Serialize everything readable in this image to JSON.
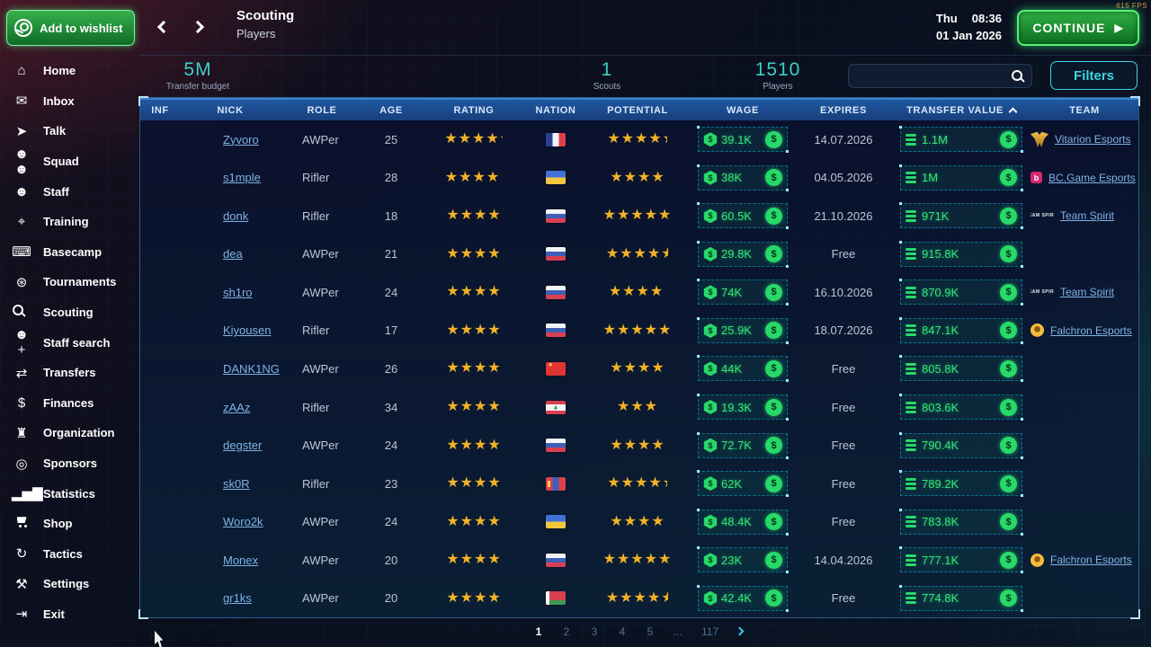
{
  "fps": "615 FPS",
  "topbar": {
    "wishlist_label": "Add to wishlist",
    "title": "Scouting",
    "subtitle": "Players",
    "date_day": "Thu",
    "time": "08:36",
    "date": "01 Jan 2026",
    "continue_label": "CONTINUE"
  },
  "statsbar": {
    "budget_value": "5M",
    "budget_label": "Transfer budget",
    "scouts_value": "1",
    "scouts_label": "Scouts",
    "players_value": "1510",
    "players_label": "Players",
    "search_placeholder": "",
    "filters_label": "Filters"
  },
  "sidebar": {
    "items": [
      {
        "label": "Home",
        "icon": "home-icon"
      },
      {
        "label": "Inbox",
        "icon": "inbox-icon"
      },
      {
        "label": "Talk",
        "icon": "talk-icon"
      },
      {
        "label": "Squad",
        "icon": "squad-icon"
      },
      {
        "label": "Staff",
        "icon": "staff-icon"
      },
      {
        "label": "Training",
        "icon": "training-icon"
      },
      {
        "label": "Basecamp",
        "icon": "basecamp-icon"
      },
      {
        "label": "Tournaments",
        "icon": "tournaments-icon"
      },
      {
        "label": "Scouting",
        "icon": "scouting-icon"
      },
      {
        "label": "Staff search",
        "icon": "staff-search-icon"
      },
      {
        "label": "Transfers",
        "icon": "transfers-icon"
      },
      {
        "label": "Finances",
        "icon": "finances-icon"
      },
      {
        "label": "Organization",
        "icon": "organization-icon"
      },
      {
        "label": "Sponsors",
        "icon": "sponsors-icon"
      },
      {
        "label": "Statistics",
        "icon": "statistics-icon"
      },
      {
        "label": "Shop",
        "icon": "shop-icon"
      },
      {
        "label": "Tactics",
        "icon": "tactics-icon"
      },
      {
        "label": "Settings",
        "icon": "settings-icon"
      },
      {
        "label": "Exit",
        "icon": "exit-icon"
      }
    ]
  },
  "table": {
    "columns": [
      "INF",
      "NICK",
      "ROLE",
      "AGE",
      "RATING",
      "NATION",
      "POTENTIAL",
      "WAGE",
      "EXPIRES",
      "TRANSFER VALUE",
      "TEAM"
    ],
    "sort": {
      "column": "TRANSFER VALUE",
      "direction": "up"
    },
    "players": [
      {
        "nick": "Zyvoro",
        "role": "AWPer",
        "age": 25,
        "rating": 4.2,
        "nation": "France",
        "potential": 4.3,
        "wage": "39.1K",
        "expires": "14.07.2026",
        "transfer_value": "1.1M",
        "team": "Vitarion Esports"
      },
      {
        "nick": "s1mple",
        "role": "Rifler",
        "age": 28,
        "rating": 4.1,
        "nation": "Ukraine",
        "potential": 4.0,
        "wage": "38K",
        "expires": "04.05.2026",
        "transfer_value": "1M",
        "team": "BC.Game Esports"
      },
      {
        "nick": "donk",
        "role": "Rifler",
        "age": 18,
        "rating": 4.0,
        "nation": "Russia",
        "potential": 5.0,
        "wage": "60.5K",
        "expires": "21.10.2026",
        "transfer_value": "971K",
        "team": "Team Spirit"
      },
      {
        "nick": "dea",
        "role": "AWPer",
        "age": 21,
        "rating": 4.0,
        "nation": "Russia",
        "potential": 4.5,
        "wage": "29.8K",
        "expires": "Free",
        "transfer_value": "915.8K",
        "team": null
      },
      {
        "nick": "sh1ro",
        "role": "AWPer",
        "age": 24,
        "rating": 4.0,
        "nation": "Russia",
        "potential": 4.1,
        "wage": "74K",
        "expires": "16.10.2026",
        "transfer_value": "870.9K",
        "team": "Team Spirit"
      },
      {
        "nick": "Kiyousen",
        "role": "Rifler",
        "age": 17,
        "rating": 4.0,
        "nation": "Russia",
        "potential": 5.0,
        "wage": "25.9K",
        "expires": "18.07.2026",
        "transfer_value": "847.1K",
        "team": "Falchron Esports"
      },
      {
        "nick": "DANK1NG",
        "role": "AWPer",
        "age": 26,
        "rating": 4.0,
        "nation": "China",
        "potential": 4.0,
        "wage": "44K",
        "expires": "Free",
        "transfer_value": "805.8K",
        "team": null
      },
      {
        "nick": "zAAz",
        "role": "Rifler",
        "age": 34,
        "rating": 4.0,
        "nation": "Lebanon",
        "potential": 3.0,
        "wage": "19.3K",
        "expires": "Free",
        "transfer_value": "803.6K",
        "team": null
      },
      {
        "nick": "degster",
        "role": "AWPer",
        "age": 24,
        "rating": 4.0,
        "nation": "Russia",
        "potential": 4.0,
        "wage": "72.7K",
        "expires": "Free",
        "transfer_value": "790.4K",
        "team": null
      },
      {
        "nick": "sk0R",
        "role": "Rifler",
        "age": 23,
        "rating": 4.0,
        "nation": "Mongolia",
        "potential": 4.3,
        "wage": "62K",
        "expires": "Free",
        "transfer_value": "789.2K",
        "team": null
      },
      {
        "nick": "Woro2k",
        "role": "AWPer",
        "age": 24,
        "rating": 4.0,
        "nation": "Ukraine",
        "potential": 4.0,
        "wage": "48.4K",
        "expires": "Free",
        "transfer_value": "783.8K",
        "team": null
      },
      {
        "nick": "Monex",
        "role": "AWPer",
        "age": 20,
        "rating": 4.0,
        "nation": "Russia",
        "potential": 5.0,
        "wage": "23K",
        "expires": "14.04.2026",
        "transfer_value": "777.1K",
        "team": "Falchron Esports"
      },
      {
        "nick": "gr1ks",
        "role": "AWPer",
        "age": 20,
        "rating": 4.0,
        "nation": "Belarus",
        "potential": 4.5,
        "wage": "42.4K",
        "expires": "Free",
        "transfer_value": "774.8K",
        "team": null
      }
    ]
  },
  "pagination": {
    "pages": [
      "1",
      "2",
      "3",
      "4",
      "5",
      "...",
      "117"
    ],
    "current": "1"
  },
  "colors": {
    "accent_green": "#27d969",
    "money_green": "#36e47a",
    "star_gold": "#f2b227",
    "link_blue": "#7fb2e3",
    "filter_cyan": "#3fd2e6",
    "header_blue": "#20589f",
    "stat_teal": "#3ecfc4",
    "continue_green": "#2fae43"
  }
}
